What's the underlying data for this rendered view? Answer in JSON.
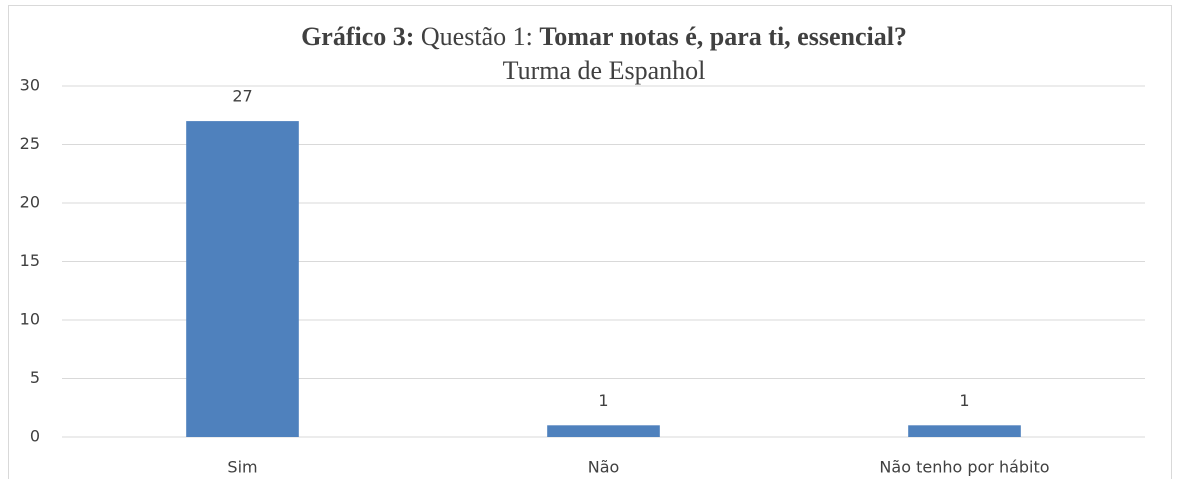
{
  "chart_data": {
    "type": "bar",
    "title": [
      "Gráfico 3:",
      "Questão 1:",
      "Tomar notas é, para ti, essencial?"
    ],
    "subtitle": "Turma de Espanhol",
    "categories": [
      "Sim",
      "Não",
      "Não tenho por hábito"
    ],
    "values": [
      27,
      1,
      1
    ],
    "color": "#4f81bd",
    "ylim": [
      0,
      30
    ],
    "yticks": [
      0,
      5,
      10,
      15,
      20,
      25,
      30
    ],
    "grid": true
  }
}
